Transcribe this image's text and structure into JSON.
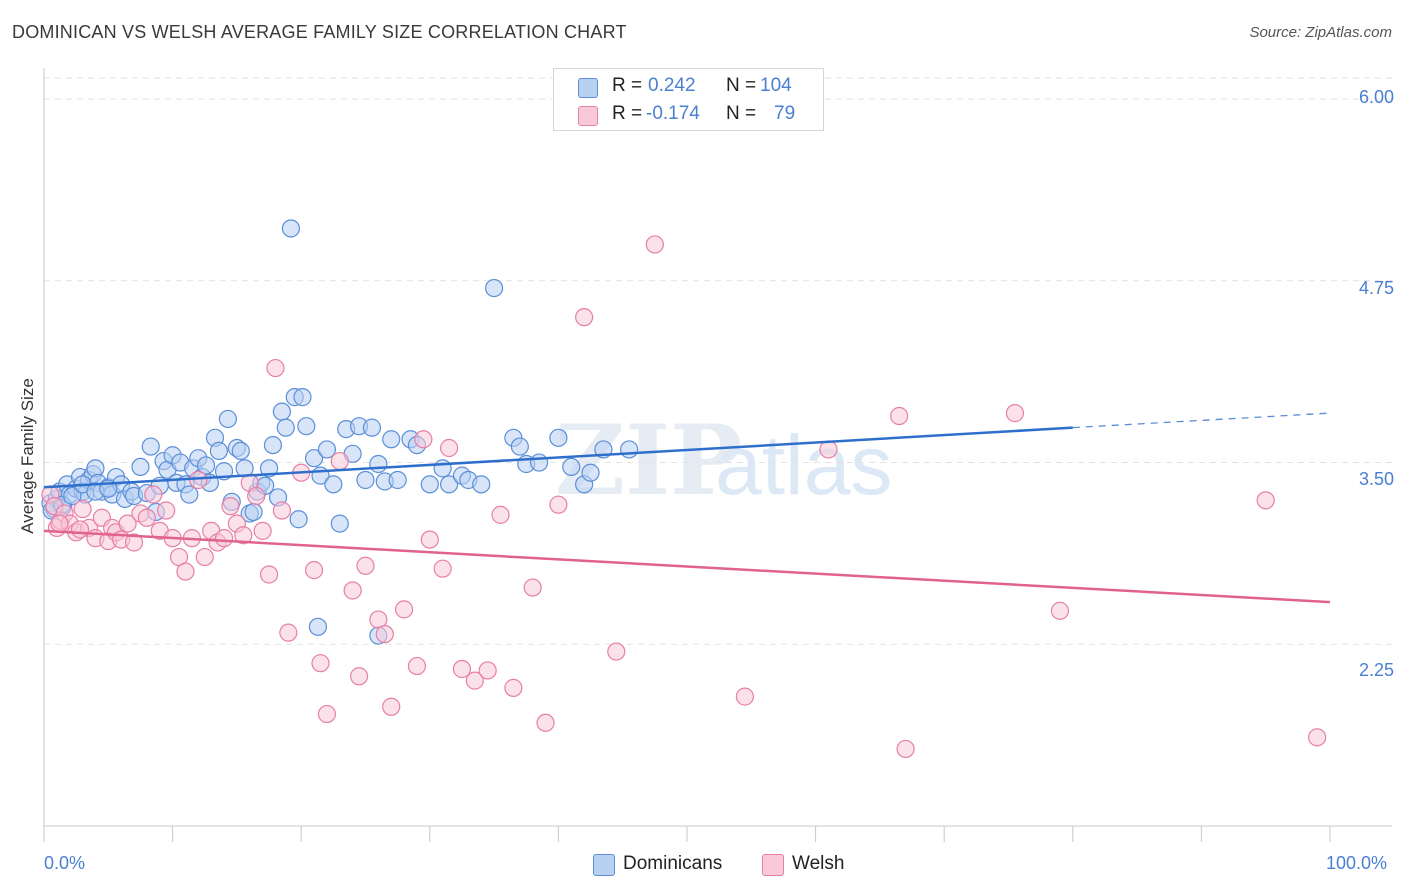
{
  "title": "DOMINICAN VS WELSH AVERAGE FAMILY SIZE CORRELATION CHART",
  "source": "Source: ZipAtlas.com",
  "colors": {
    "blue": "#5b8fd9",
    "blue_fill": "#b8d0f2",
    "blue_line": "#2f6fcc",
    "pink": "#e87fa4",
    "pink_fill": "#f8c9d8",
    "pink_line": "#e0628f",
    "tick_text": "#4a7fd1",
    "grid": "#e2e2e2"
  },
  "legend_top": {
    "rows": [
      {
        "series": "blue",
        "r_label": "R =",
        "r_value": "0.242",
        "n_label": "N =",
        "n_value": "104"
      },
      {
        "series": "pink",
        "r_label": "R =",
        "r_value": "-0.174",
        "n_label": "N =",
        "n_value": "79"
      }
    ]
  },
  "legend_bottom": [
    "Dominicans",
    "Welsh"
  ],
  "watermark": {
    "zip": "ZIP",
    "atlas": "atlas"
  },
  "chart_data": {
    "type": "scatter",
    "title": "DOMINICAN VS WELSH AVERAGE FAMILY SIZE CORRELATION CHART",
    "xlabel": "",
    "ylabel": "Average Family Size",
    "xlim": [
      0,
      100
    ],
    "ylim": [
      1.0,
      6.2
    ],
    "x_tick_labels": [
      "0.0%",
      "100.0%"
    ],
    "y_ticks": [
      2.25,
      3.5,
      4.75,
      6.0
    ],
    "y_tick_labels": [
      "2.25",
      "3.50",
      "4.75",
      "6.00"
    ],
    "grid": "horizontal dashed",
    "legend_position": "top-center and bottom",
    "series": [
      {
        "name": "Dominicans",
        "color": "blue",
        "r": 0.242,
        "n": 104,
        "trend": {
          "x": [
            0,
            80
          ],
          "y": [
            3.33,
            3.74
          ],
          "dashed_extension": {
            "x": [
              80,
              100
            ],
            "y": [
              3.74,
              3.84
            ]
          }
        },
        "points": [
          [
            0.5,
            3.22
          ],
          [
            0.8,
            3.18
          ],
          [
            1.0,
            3.25
          ],
          [
            1.2,
            3.3
          ],
          [
            1.5,
            3.2
          ],
          [
            1.8,
            3.35
          ],
          [
            2.0,
            3.28
          ],
          [
            2.5,
            3.32
          ],
          [
            2.8,
            3.4
          ],
          [
            3.0,
            3.3
          ],
          [
            3.2,
            3.28
          ],
          [
            3.5,
            3.38
          ],
          [
            3.8,
            3.42
          ],
          [
            4.0,
            3.46
          ],
          [
            4.2,
            3.36
          ],
          [
            4.5,
            3.3
          ],
          [
            5.0,
            3.33
          ],
          [
            5.3,
            3.28
          ],
          [
            5.6,
            3.4
          ],
          [
            6.0,
            3.35
          ],
          [
            6.3,
            3.25
          ],
          [
            6.8,
            3.3
          ],
          [
            7.0,
            3.27
          ],
          [
            7.5,
            3.47
          ],
          [
            8.0,
            3.29
          ],
          [
            8.3,
            3.61
          ],
          [
            8.7,
            3.16
          ],
          [
            9.0,
            3.34
          ],
          [
            9.3,
            3.51
          ],
          [
            9.6,
            3.45
          ],
          [
            10.0,
            3.55
          ],
          [
            10.3,
            3.36
          ],
          [
            10.6,
            3.5
          ],
          [
            11.0,
            3.35
          ],
          [
            11.3,
            3.28
          ],
          [
            11.6,
            3.46
          ],
          [
            12.0,
            3.53
          ],
          [
            12.3,
            3.4
          ],
          [
            12.6,
            3.48
          ],
          [
            12.9,
            3.36
          ],
          [
            13.3,
            3.67
          ],
          [
            13.6,
            3.58
          ],
          [
            14.0,
            3.44
          ],
          [
            14.3,
            3.8
          ],
          [
            14.6,
            3.23
          ],
          [
            15.0,
            3.6
          ],
          [
            15.3,
            3.58
          ],
          [
            15.6,
            3.46
          ],
          [
            16.0,
            3.15
          ],
          [
            16.3,
            3.16
          ],
          [
            16.6,
            3.3
          ],
          [
            16.9,
            3.36
          ],
          [
            17.2,
            3.34
          ],
          [
            17.5,
            3.46
          ],
          [
            17.8,
            3.62
          ],
          [
            18.2,
            3.26
          ],
          [
            18.5,
            3.85
          ],
          [
            18.8,
            3.74
          ],
          [
            19.2,
            5.11
          ],
          [
            19.5,
            3.95
          ],
          [
            19.8,
            3.11
          ],
          [
            20.1,
            3.95
          ],
          [
            20.4,
            3.75
          ],
          [
            21.0,
            3.53
          ],
          [
            21.5,
            3.41
          ],
          [
            22.0,
            3.59
          ],
          [
            22.5,
            3.35
          ],
          [
            23.0,
            3.08
          ],
          [
            23.5,
            3.73
          ],
          [
            24.0,
            3.56
          ],
          [
            24.5,
            3.75
          ],
          [
            25.0,
            3.38
          ],
          [
            25.5,
            3.74
          ],
          [
            26.0,
            3.49
          ],
          [
            26.5,
            3.37
          ],
          [
            27.0,
            3.66
          ],
          [
            27.5,
            3.38
          ],
          [
            28.5,
            3.66
          ],
          [
            29.0,
            3.62
          ],
          [
            30.0,
            3.35
          ],
          [
            31.0,
            3.46
          ],
          [
            31.5,
            3.35
          ],
          [
            32.5,
            3.41
          ],
          [
            33.0,
            3.38
          ],
          [
            34.0,
            3.35
          ],
          [
            35.0,
            4.7
          ],
          [
            36.5,
            3.67
          ],
          [
            37.0,
            3.61
          ],
          [
            37.5,
            3.49
          ],
          [
            38.5,
            3.5
          ],
          [
            40.0,
            3.67
          ],
          [
            41.0,
            3.47
          ],
          [
            42.0,
            3.35
          ],
          [
            42.5,
            3.43
          ],
          [
            43.5,
            3.59
          ],
          [
            45.5,
            3.59
          ],
          [
            21.3,
            2.37
          ],
          [
            26.0,
            2.31
          ],
          [
            0.6,
            3.17
          ],
          [
            1.4,
            3.21
          ],
          [
            2.2,
            3.27
          ],
          [
            3.0,
            3.35
          ],
          [
            4.0,
            3.3
          ],
          [
            5.0,
            3.32
          ]
        ]
      },
      {
        "name": "Welsh",
        "color": "pink",
        "r": -0.174,
        "n": 79,
        "trend": {
          "x": [
            0,
            100
          ],
          "y": [
            3.03,
            2.54
          ]
        },
        "points": [
          [
            0.5,
            3.28
          ],
          [
            0.8,
            3.2
          ],
          [
            1.0,
            3.05
          ],
          [
            1.3,
            3.1
          ],
          [
            1.6,
            3.15
          ],
          [
            2.0,
            3.08
          ],
          [
            2.5,
            3.02
          ],
          [
            3.0,
            3.18
          ],
          [
            3.5,
            3.05
          ],
          [
            4.0,
            2.98
          ],
          [
            4.5,
            3.12
          ],
          [
            5.0,
            2.96
          ],
          [
            5.3,
            3.05
          ],
          [
            5.6,
            3.02
          ],
          [
            6.0,
            2.97
          ],
          [
            6.5,
            3.08
          ],
          [
            7.0,
            2.95
          ],
          [
            7.5,
            3.15
          ],
          [
            8.0,
            3.12
          ],
          [
            8.5,
            3.28
          ],
          [
            9.0,
            3.03
          ],
          [
            9.5,
            3.17
          ],
          [
            10.0,
            2.98
          ],
          [
            10.5,
            2.85
          ],
          [
            11.0,
            2.75
          ],
          [
            11.5,
            2.98
          ],
          [
            12.0,
            3.38
          ],
          [
            12.5,
            2.85
          ],
          [
            13.0,
            3.03
          ],
          [
            13.5,
            2.95
          ],
          [
            14.0,
            2.98
          ],
          [
            14.5,
            3.2
          ],
          [
            15.0,
            3.08
          ],
          [
            15.5,
            3.0
          ],
          [
            16.0,
            3.36
          ],
          [
            16.5,
            3.27
          ],
          [
            17.0,
            3.03
          ],
          [
            17.5,
            2.73
          ],
          [
            18.0,
            4.15
          ],
          [
            18.5,
            3.17
          ],
          [
            19.0,
            2.33
          ],
          [
            20.0,
            3.43
          ],
          [
            21.0,
            2.76
          ],
          [
            21.5,
            2.12
          ],
          [
            22.0,
            1.77
          ],
          [
            23.0,
            3.51
          ],
          [
            24.0,
            2.62
          ],
          [
            24.5,
            2.03
          ],
          [
            25.0,
            2.79
          ],
          [
            26.0,
            2.42
          ],
          [
            26.5,
            2.32
          ],
          [
            27.0,
            1.82
          ],
          [
            28.0,
            2.49
          ],
          [
            29.0,
            2.1
          ],
          [
            29.5,
            3.66
          ],
          [
            30.0,
            2.97
          ],
          [
            31.0,
            2.77
          ],
          [
            31.5,
            3.6
          ],
          [
            32.5,
            2.08
          ],
          [
            33.5,
            2.0
          ],
          [
            34.5,
            2.07
          ],
          [
            35.5,
            3.14
          ],
          [
            36.5,
            1.95
          ],
          [
            38.0,
            2.64
          ],
          [
            39.0,
            1.71
          ],
          [
            40.0,
            3.21
          ],
          [
            42.0,
            4.5
          ],
          [
            44.5,
            2.2
          ],
          [
            47.5,
            5.0
          ],
          [
            54.5,
            1.89
          ],
          [
            61.0,
            3.59
          ],
          [
            66.5,
            3.82
          ],
          [
            67.0,
            1.53
          ],
          [
            75.5,
            3.84
          ],
          [
            79.0,
            2.48
          ],
          [
            95.0,
            3.24
          ],
          [
            99.0,
            1.61
          ],
          [
            1.2,
            3.08
          ],
          [
            2.8,
            3.04
          ]
        ]
      }
    ]
  }
}
